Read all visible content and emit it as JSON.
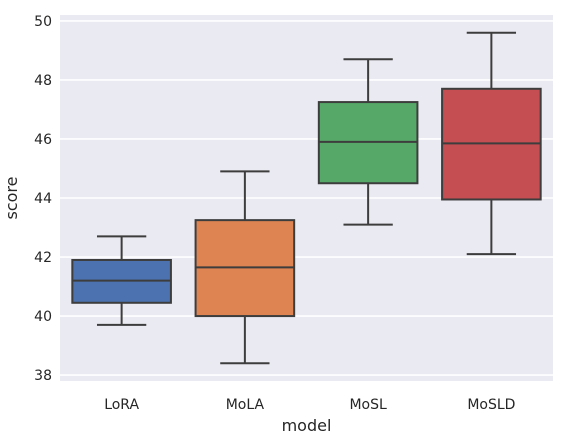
{
  "chart_data": {
    "type": "box",
    "xlabel": "model",
    "ylabel": "score",
    "ylim": [
      37.8,
      50.2
    ],
    "yticks": [
      38,
      40,
      42,
      44,
      46,
      48,
      50
    ],
    "grid": true,
    "categories": [
      "LoRA",
      "MoLA",
      "MoSL",
      "MoSLD"
    ],
    "boxes": [
      {
        "category": "LoRA",
        "whisker_low": 39.7,
        "q1": 40.45,
        "median": 41.2,
        "q3": 41.9,
        "whisker_high": 42.7,
        "color": "#4c72b0"
      },
      {
        "category": "MoLA",
        "whisker_low": 38.4,
        "q1": 40.0,
        "median": 41.65,
        "q3": 43.25,
        "whisker_high": 44.9,
        "color": "#dd8452"
      },
      {
        "category": "MoSL",
        "whisker_low": 43.1,
        "q1": 44.5,
        "median": 45.9,
        "q3": 47.25,
        "whisker_high": 48.7,
        "color": "#55a868"
      },
      {
        "category": "MoSLD",
        "whisker_low": 42.1,
        "q1": 43.95,
        "median": 45.85,
        "q3": 47.7,
        "whisker_high": 49.6,
        "color": "#c44e52"
      }
    ],
    "colors": {
      "background": "#eaeaf2",
      "grid": "#ffffff",
      "line": "#3d3d3d"
    }
  }
}
